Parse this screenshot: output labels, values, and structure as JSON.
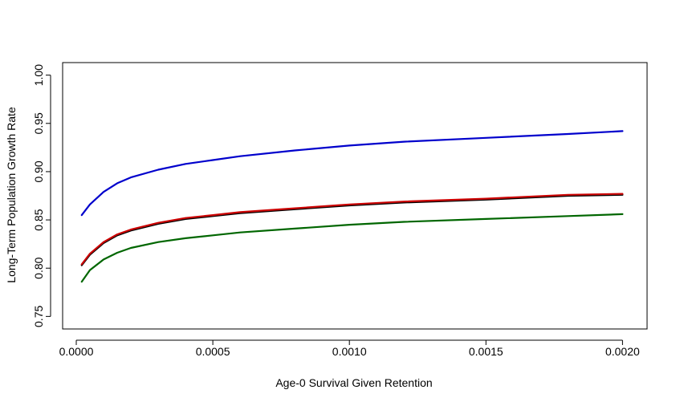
{
  "chart_data": {
    "type": "line",
    "title": "",
    "xlabel": "Age-0 Survival Given Retention",
    "ylabel": "Long-Term Population Growth Rate",
    "xlim": [
      -5e-05,
      0.00209
    ],
    "ylim": [
      0.737,
      1.013
    ],
    "x_ticks": [
      0.0,
      0.0005,
      0.001,
      0.0015,
      0.002
    ],
    "x_tick_labels": [
      "0.0000",
      "0.0005",
      "0.0010",
      "0.0015",
      "0.0020"
    ],
    "y_ticks": [
      0.75,
      0.8,
      0.85,
      0.9,
      0.95,
      1.0
    ],
    "y_tick_labels": [
      "0.75",
      "0.80",
      "0.85",
      "0.90",
      "0.95",
      "1.00"
    ],
    "grid": false,
    "legend": "none",
    "x": [
      2e-05,
      5e-05,
      0.0001,
      0.00015,
      0.0002,
      0.0003,
      0.0004,
      0.0005,
      0.0006,
      0.0008,
      0.001,
      0.0012,
      0.0015,
      0.0018,
      0.002
    ],
    "series": [
      {
        "color": "#0000cc",
        "values": [
          0.855,
          0.866,
          0.879,
          0.888,
          0.894,
          0.902,
          0.908,
          0.912,
          0.916,
          0.922,
          0.927,
          0.931,
          0.935,
          0.939,
          0.942
        ]
      },
      {
        "color": "#000000",
        "values": [
          0.803,
          0.814,
          0.826,
          0.834,
          0.839,
          0.846,
          0.851,
          0.854,
          0.857,
          0.861,
          0.865,
          0.868,
          0.871,
          0.875,
          0.876
        ]
      },
      {
        "color": "#cc0000",
        "values": [
          0.804,
          0.815,
          0.827,
          0.835,
          0.84,
          0.847,
          0.852,
          0.855,
          0.858,
          0.862,
          0.866,
          0.869,
          0.872,
          0.876,
          0.877
        ]
      },
      {
        "color": "#006600",
        "values": [
          0.786,
          0.798,
          0.809,
          0.816,
          0.821,
          0.827,
          0.831,
          0.834,
          0.837,
          0.841,
          0.845,
          0.848,
          0.851,
          0.854,
          0.856
        ]
      }
    ]
  }
}
